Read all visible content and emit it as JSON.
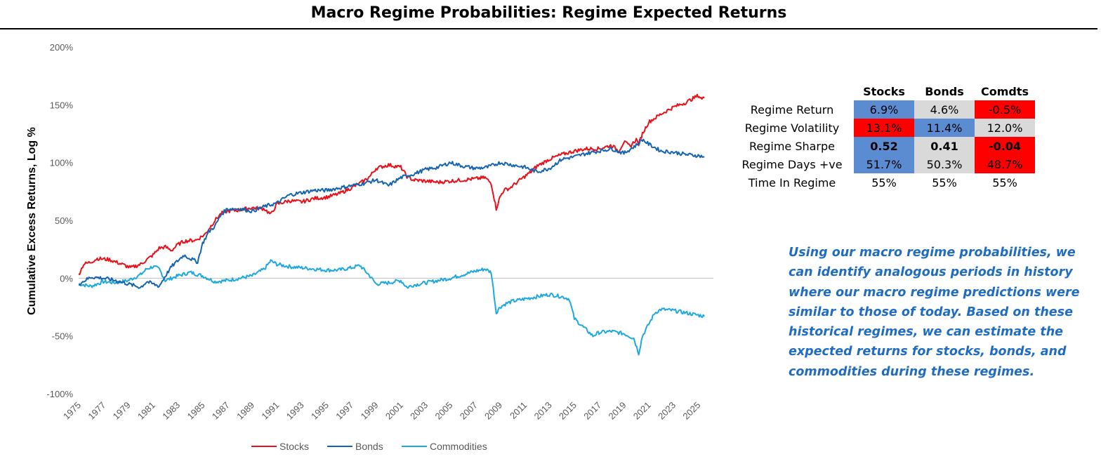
{
  "header": {
    "title": "Macro Regime Probabilities: Regime Expected Returns"
  },
  "colors": {
    "stocks": "#e8111a",
    "bonds": "#1464b3",
    "commodities": "#1ea8e0",
    "cell_blue": "#5b8bd1",
    "cell_grey": "#d9d9d9",
    "cell_red": "#ff0000"
  },
  "chart_data": {
    "type": "line",
    "title": "",
    "xlabel": "",
    "ylabel": "Cumulative Excess Returns, Log %",
    "ylim": [
      -100,
      200
    ],
    "y_ticks": [
      -100,
      -50,
      0,
      50,
      100,
      150,
      200
    ],
    "y_tick_labels": [
      "-100%",
      "-50%",
      "0%",
      "50%",
      "100%",
      "150%",
      "200%"
    ],
    "xlim": [
      1975,
      2026
    ],
    "x_ticks": [
      "1975",
      "1977",
      "1979",
      "1981",
      "1983",
      "1985",
      "1987",
      "1989",
      "1991",
      "1993",
      "1995",
      "1997",
      "1999",
      "2001",
      "2003",
      "2005",
      "2007",
      "2009",
      "2011",
      "2013",
      "2015",
      "2017",
      "2019",
      "2021",
      "2023",
      "2025"
    ],
    "grid": false,
    "legend": "bottom",
    "series": [
      {
        "name": "Stocks",
        "color": "#e8111a",
        "x": [
          1975.0,
          1975.4,
          1976.0,
          1976.5,
          1977.5,
          1978.5,
          1979.2,
          1980.0,
          1980.5,
          1981.0,
          1981.5,
          1982.0,
          1982.5,
          1983.0,
          1983.5,
          1984.5,
          1985.2,
          1986.0,
          1986.5,
          1987.0,
          1988.0,
          1989.0,
          1990.0,
          1990.5,
          1991.0,
          1992.0,
          1993.0,
          1994.0,
          1995.0,
          1996.0,
          1997.0,
          1998.0,
          1998.5,
          1999.0,
          2000.0,
          2001.0,
          2001.5,
          2002.0,
          2003.0,
          2004.0,
          2005.0,
          2006.0,
          2007.0,
          2007.8,
          2008.3,
          2008.7,
          2009.0,
          2009.3,
          2009.8,
          2010.5,
          2011.0,
          2011.5,
          2012.0,
          2013.0,
          2014.0,
          2015.0,
          2016.0,
          2017.0,
          2018.0,
          2018.6,
          2019.0,
          2019.5,
          2020.0,
          2020.2,
          2020.5,
          2021.0,
          2022.0,
          2023.0,
          2024.0,
          2025.0,
          2025.3,
          2025.5
        ],
        "y": [
          3,
          12,
          14,
          17,
          16,
          12,
          9,
          12,
          16,
          20,
          26,
          27,
          24,
          29,
          32,
          33,
          38,
          50,
          56,
          58,
          59,
          61,
          60,
          55,
          64,
          67,
          66,
          69,
          70,
          73,
          78,
          84,
          88,
          95,
          98,
          96,
          88,
          85,
          84,
          83,
          84,
          85,
          86,
          87,
          82,
          60,
          70,
          76,
          78,
          84,
          88,
          92,
          97,
          103,
          107,
          110,
          112,
          112,
          115,
          110,
          118,
          114,
          120,
          116,
          125,
          135,
          142,
          148,
          152,
          158,
          155,
          156
        ]
      },
      {
        "name": "Bonds",
        "color": "#1464b3",
        "x": [
          1975.0,
          1975.5,
          1976.0,
          1977.0,
          1978.0,
          1979.0,
          1980.0,
          1980.5,
          1981.0,
          1981.5,
          1982.0,
          1982.5,
          1983.0,
          1983.5,
          1984.0,
          1984.6,
          1985.0,
          1985.5,
          1986.0,
          1986.5,
          1987.0,
          1988.0,
          1989.0,
          1990.0,
          1991.0,
          1992.0,
          1993.0,
          1994.0,
          1995.0,
          1996.0,
          1997.0,
          1998.0,
          1999.0,
          2000.0,
          2001.0,
          2002.0,
          2003.0,
          2004.0,
          2005.0,
          2006.0,
          2007.0,
          2008.0,
          2008.5,
          2009.0,
          2010.0,
          2011.0,
          2012.0,
          2013.0,
          2014.0,
          2015.0,
          2016.0,
          2017.0,
          2018.0,
          2019.0,
          2020.0,
          2020.5,
          2021.0,
          2022.0,
          2023.0,
          2024.0,
          2025.0,
          2025.5
        ],
        "y": [
          -5,
          -2,
          1,
          0,
          -2,
          -5,
          -8,
          -3,
          -5,
          -7,
          2,
          10,
          15,
          20,
          17,
          14,
          30,
          40,
          45,
          55,
          60,
          60,
          58,
          62,
          65,
          72,
          74,
          76,
          76,
          78,
          80,
          82,
          85,
          80,
          87,
          90,
          94,
          96,
          100,
          97,
          95,
          96,
          98,
          100,
          98,
          96,
          92,
          95,
          103,
          105,
          108,
          110,
          112,
          108,
          115,
          120,
          116,
          110,
          109,
          107,
          106,
          105
        ]
      },
      {
        "name": "Commodities",
        "color": "#1ea8e0",
        "x": [
          1975.0,
          1976.0,
          1977.0,
          1978.0,
          1979.0,
          1980.0,
          1980.5,
          1981.0,
          1981.5,
          1982.0,
          1983.0,
          1984.0,
          1985.0,
          1986.0,
          1987.0,
          1988.0,
          1989.0,
          1990.0,
          1990.5,
          1991.0,
          1992.0,
          1993.0,
          1994.0,
          1995.0,
          1996.0,
          1997.0,
          1997.7,
          1998.5,
          1999.0,
          2000.0,
          2001.0,
          2001.5,
          2002.0,
          2003.0,
          2004.0,
          2005.0,
          2006.0,
          2007.0,
          2007.8,
          2008.3,
          2008.7,
          2009.0,
          2009.5,
          2010.0,
          2011.0,
          2012.0,
          2013.0,
          2014.0,
          2014.6,
          2015.0,
          2015.5,
          2016.0,
          2016.5,
          2017.0,
          2018.0,
          2019.0,
          2019.8,
          2020.2,
          2020.5,
          2021.0,
          2021.5,
          2022.0,
          2023.0,
          2024.0,
          2025.0,
          2025.5
        ],
        "y": [
          -5,
          -7,
          -3,
          -4,
          -2,
          3,
          8,
          10,
          8,
          -2,
          2,
          5,
          2,
          -3,
          -2,
          0,
          2,
          8,
          15,
          12,
          10,
          9,
          8,
          7,
          7,
          9,
          11,
          2,
          -5,
          -4,
          -2,
          -8,
          -6,
          -4,
          -2,
          0,
          3,
          6,
          8,
          5,
          -30,
          -25,
          -22,
          -20,
          -18,
          -16,
          -14,
          -16,
          -18,
          -35,
          -40,
          -45,
          -50,
          -47,
          -46,
          -48,
          -52,
          -65,
          -50,
          -40,
          -30,
          -27,
          -28,
          -30,
          -32,
          -33
        ]
      }
    ]
  },
  "stats_table": {
    "columns": [
      "Stocks",
      "Bonds",
      "Comdts"
    ],
    "rows": [
      {
        "label": "Regime Return",
        "values": [
          "6.9%",
          "4.6%",
          "-0.5%"
        ]
      },
      {
        "label": "Regime Volatility",
        "values": [
          "13.1%",
          "11.4%",
          "12.0%"
        ]
      },
      {
        "label": "Regime Sharpe",
        "values": [
          "0.52",
          "0.41",
          "-0.04"
        ]
      },
      {
        "label": "Regime Days +ve",
        "values": [
          "51.7%",
          "50.3%",
          "48.7%"
        ]
      },
      {
        "label": "Time In Regime",
        "values": [
          "55%",
          "55%",
          "55%"
        ]
      }
    ]
  },
  "note": {
    "text": "Using our macro regime probabilities, we can identify analogous periods in history where our macro regime predictions were similar to those of today. Based on these historical regimes, we can estimate the expected returns for stocks, bonds, and commodities during these regimes."
  }
}
